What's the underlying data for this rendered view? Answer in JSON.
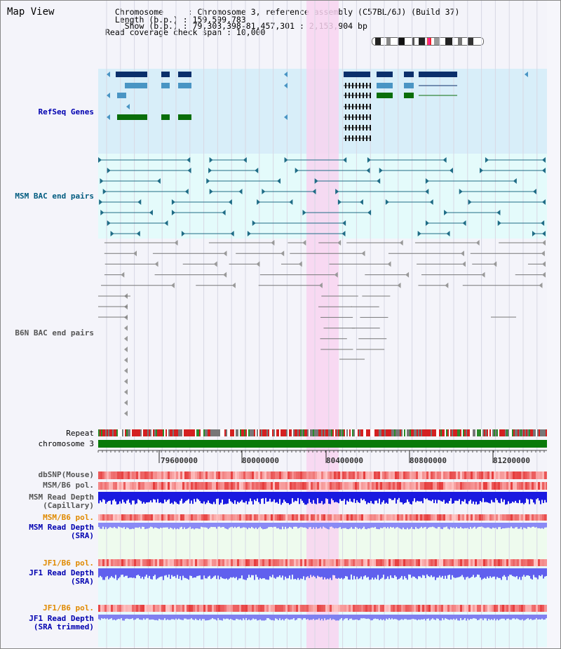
{
  "view": {
    "title": "Map View",
    "info_lines": [
      "  Chromosome     : Chromosome 3, reference assembly (C57BL/6J) (Build 37)",
      "  Length (b.p.) : 159,599,783",
      "    Show (b.p.) : 79,303,398-81,457,301 : 2,153,904 bp",
      "Read coverage check span : 10,000"
    ]
  },
  "tracks": {
    "refseq": "RefSeq Genes",
    "msm_bac": "MSM BAC end pairs",
    "b6n_bac": "B6N BAC end pairs",
    "repeat": "Repeat",
    "chromosome": "chromosome 3",
    "dbsnp": "dbSNP(Mouse)",
    "msm_b6_pol": "MSM/B6 pol.",
    "msm_depth_cap_1": "MSM Read Depth",
    "msm_depth_cap_2": "(Capillary)",
    "msm_b6_pol_2": "MSM/B6 pol.",
    "msm_depth_sra_1": "MSM Read Depth",
    "msm_depth_sra_2": "(SRA)",
    "jf1_b6_pol": "JF1/B6 pol.",
    "jf1_depth_sra_1": "JF1 Read Depth",
    "jf1_depth_sra_2": "(SRA)",
    "jf1_b6_pol_2": "JF1/B6 pol.",
    "jf1_depth_trim_1": "JF1 Read Depth",
    "jf1_depth_trim_2": "(SRA trimmed)"
  },
  "axis": {
    "ticks": [
      "79600000",
      "80000000",
      "80400000",
      "80800000",
      "81200000"
    ]
  },
  "colors": {
    "refseq_bg": "#d8eef9",
    "msm_bg": "#e4fbfb",
    "highlight": "#f8d4f0",
    "gene_dark": "#0b2f6b",
    "gene_light": "#4a95c4",
    "gene_green": "#0a6e0a",
    "bac_msm": "#1f6c86",
    "bac_b6n": "#777777",
    "chromosome": "#0a7a0a"
  }
}
